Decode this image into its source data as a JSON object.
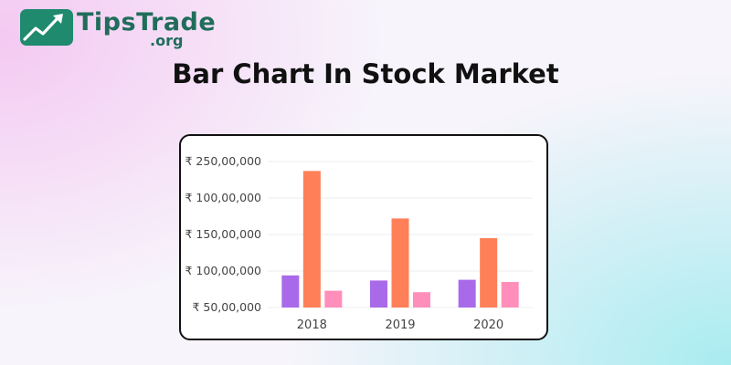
{
  "brand": {
    "name": "TipsTrade",
    "tld": ".org",
    "logo_icon": "trending-up-chart-icon",
    "color": "#1f8a6d"
  },
  "title": "Bar Chart In Stock Market",
  "chart_data": {
    "type": "bar",
    "categories": [
      "2018",
      "2019",
      "2020"
    ],
    "y_tick_labels": [
      "₹ 250,00,000",
      "₹ 100,00,000",
      "₹ 150,00,000",
      "₹ 100,00,000",
      "₹ 50,00,000"
    ],
    "ylim": [
      50,
      250
    ],
    "grid": true,
    "legend": "none",
    "series": [
      {
        "values": [
          94,
          87,
          88
        ],
        "color": "#a96ae9"
      },
      {
        "values": [
          237,
          172,
          145
        ],
        "color": "#ff7f58"
      },
      {
        "values": [
          73,
          71,
          85
        ],
        "color": "#ff8fba"
      }
    ]
  }
}
